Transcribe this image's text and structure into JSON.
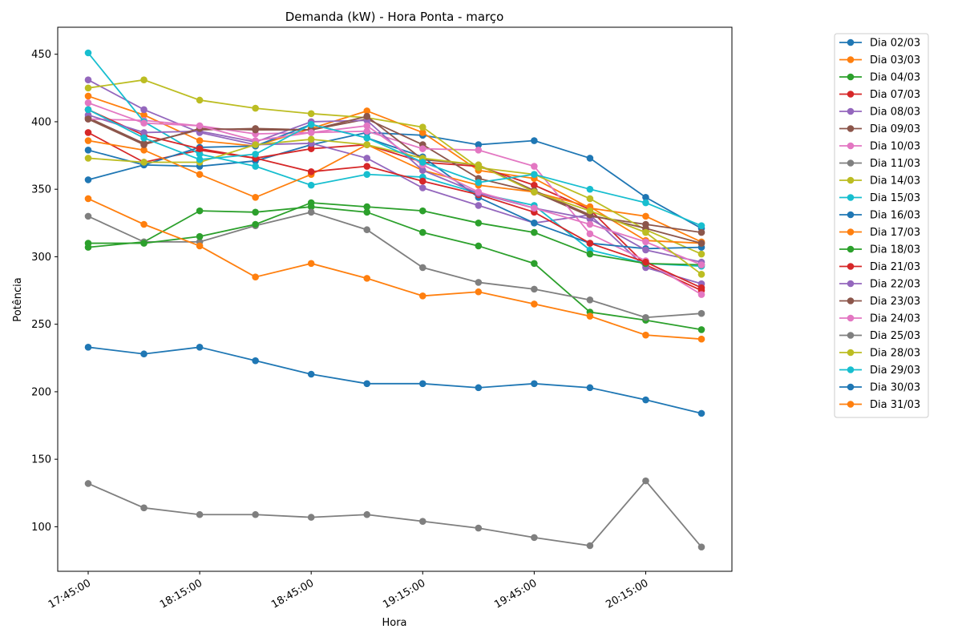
{
  "chart_data": {
    "type": "line",
    "title": "Demanda (kW) - Hora Ponta - março",
    "xlabel": "Hora",
    "ylabel": "Potência",
    "x": [
      "17:45:00",
      "18:00:00",
      "18:15:00",
      "18:30:00",
      "18:45:00",
      "19:00:00",
      "19:15:00",
      "19:30:00",
      "19:45:00",
      "20:00:00",
      "20:15:00",
      "20:30:00"
    ],
    "xtick_labels": [
      "17:45:00",
      "18:15:00",
      "18:45:00",
      "19:15:00",
      "19:45:00",
      "20:15:00"
    ],
    "ylim": [
      67,
      470
    ],
    "yticks": [
      100,
      150,
      200,
      250,
      300,
      350,
      400,
      450
    ],
    "grid": false,
    "legend_position": "outside-right",
    "series": [
      {
        "name": "Dia 02/03",
        "color": "#1f77b4",
        "values": [
          357,
          368,
          367,
          371,
          383,
          392,
          390,
          383,
          386,
          373,
          344,
          321
        ]
      },
      {
        "name": "Dia 03/03",
        "color": "#ff7f0e",
        "values": [
          419,
          405,
          386,
          382,
          395,
          408,
          392,
          364,
          358,
          336,
          330,
          311
        ]
      },
      {
        "name": "Dia 04/03",
        "color": "#2ca02c",
        "values": [
          307,
          311,
          334,
          333,
          337,
          333,
          318,
          308,
          295,
          259,
          253,
          246
        ]
      },
      {
        "name": "Dia 07/03",
        "color": "#d62728",
        "values": [
          392,
          370,
          379,
          373,
          380,
          383,
          370,
          367,
          353,
          335,
          294,
          275
        ]
      },
      {
        "name": "Dia 08/03",
        "color": "#9467bd",
        "values": [
          431,
          409,
          392,
          383,
          384,
          373,
          351,
          338,
          325,
          331,
          292,
          280
        ]
      },
      {
        "name": "Dia 09/03",
        "color": "#8c564b",
        "values": [
          403,
          384,
          394,
          395,
          394,
          402,
          383,
          358,
          348,
          330,
          324,
          318
        ]
      },
      {
        "name": "Dia 10/03",
        "color": "#e377c2",
        "values": [
          402,
          401,
          397,
          391,
          392,
          393,
          380,
          379,
          367,
          317,
          297,
          272
        ]
      },
      {
        "name": "Dia 11/03",
        "color": "#7f7f7f",
        "values": [
          330,
          311,
          311,
          323,
          333,
          320,
          292,
          281,
          276,
          268,
          255,
          258
        ]
      },
      {
        "name": "Dia 14/03",
        "color": "#bcbd22",
        "values": [
          425,
          431,
          416,
          410,
          406,
          403,
          396,
          366,
          361,
          343,
          320,
          302
        ]
      },
      {
        "name": "Dia 15/03",
        "color": "#17becf",
        "values": [
          451,
          400,
          376,
          367,
          353,
          361,
          359,
          347,
          338,
          305,
          295,
          293
        ]
      },
      {
        "name": "Dia 16/03",
        "color": "#1f77b4",
        "values": [
          379,
          368,
          381,
          382,
          398,
          388,
          374,
          344,
          325,
          310,
          306,
          307
        ]
      },
      {
        "name": "Dia 17/03",
        "color": "#ff7f0e",
        "values": [
          386,
          379,
          361,
          344,
          361,
          383,
          364,
          353,
          348,
          337,
          312,
          310
        ]
      },
      {
        "name": "Dia 18/03",
        "color": "#2ca02c",
        "values": [
          310,
          310,
          315,
          324,
          340,
          337,
          334,
          325,
          318,
          302,
          295,
          294
        ]
      },
      {
        "name": "Dia 21/03",
        "color": "#d62728",
        "values": [
          409,
          390,
          380,
          373,
          363,
          367,
          356,
          346,
          333,
          310,
          296,
          277
        ]
      },
      {
        "name": "Dia 22/03",
        "color": "#9467bd",
        "values": [
          405,
          392,
          393,
          385,
          400,
          401,
          364,
          347,
          336,
          328,
          305,
          296
        ]
      },
      {
        "name": "Dia 23/03",
        "color": "#8c564b",
        "values": [
          402,
          383,
          395,
          394,
          394,
          404,
          372,
          368,
          349,
          331,
          321,
          310
        ]
      },
      {
        "name": "Dia 24/03",
        "color": "#e377c2",
        "values": [
          414,
          399,
          397,
          386,
          392,
          397,
          368,
          348,
          336,
          324,
          311,
          294
        ]
      },
      {
        "name": "Dia 25/03",
        "color": "#7f7f7f",
        "values": [
          132,
          114,
          109,
          109,
          107,
          109,
          104,
          99,
          92,
          86,
          134,
          85
        ]
      },
      {
        "name": "Dia 28/03",
        "color": "#bcbd22",
        "values": [
          373,
          370,
          370,
          383,
          387,
          383,
          373,
          368,
          348,
          334,
          318,
          287
        ]
      },
      {
        "name": "Dia 29/03",
        "color": "#17becf",
        "values": [
          409,
          388,
          372,
          376,
          398,
          388,
          370,
          355,
          361,
          350,
          340,
          323
        ]
      },
      {
        "name": "Dia 30/03",
        "color": "#1f77b4",
        "values": [
          233,
          228,
          233,
          223,
          213,
          206,
          206,
          203,
          206,
          203,
          194,
          184
        ]
      },
      {
        "name": "Dia 31/03",
        "color": "#ff7f0e",
        "values": [
          343,
          324,
          308,
          285,
          295,
          284,
          271,
          274,
          265,
          256,
          242,
          239
        ]
      }
    ]
  }
}
